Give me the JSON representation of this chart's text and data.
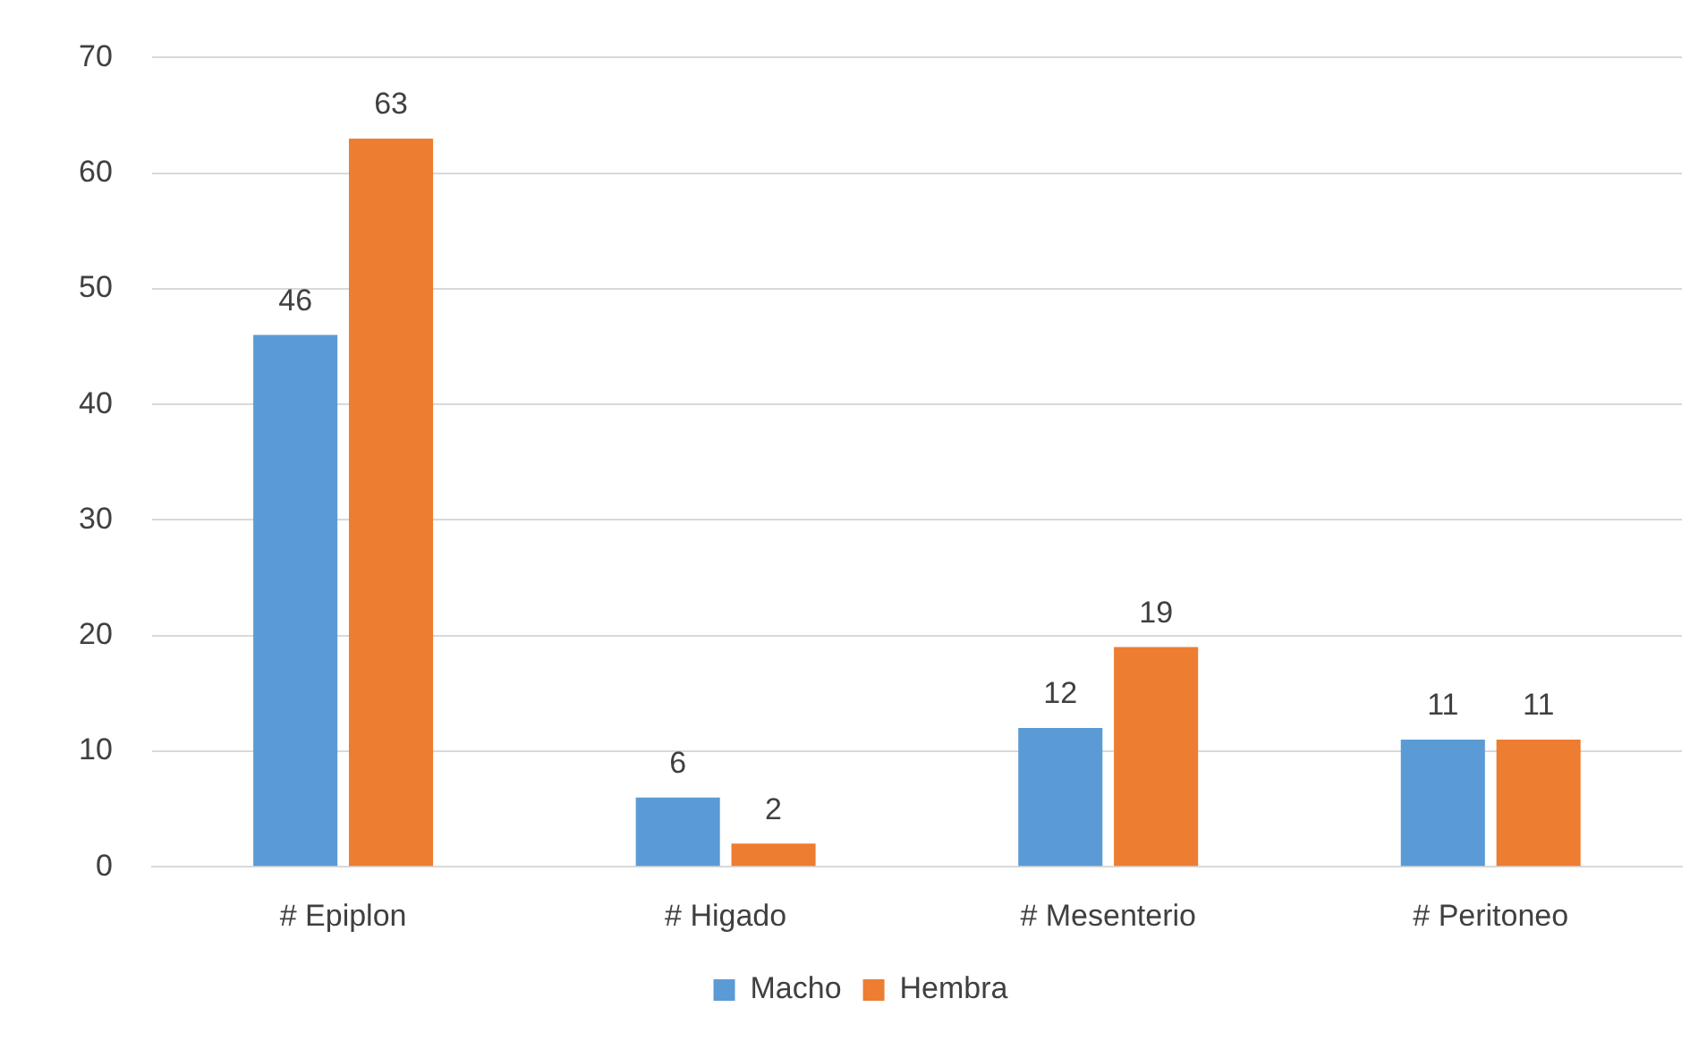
{
  "chart_data": {
    "type": "bar",
    "categories": [
      "# Epiplon",
      "# Higado",
      "# Mesenterio",
      "# Peritoneo"
    ],
    "series": [
      {
        "name": "Macho",
        "color": "#5b9bd5",
        "values": [
          46,
          6,
          12,
          11
        ]
      },
      {
        "name": "Hembra",
        "color": "#ed7d31",
        "values": [
          63,
          2,
          19,
          11
        ]
      }
    ],
    "ylim": [
      0,
      70
    ],
    "yticks": [
      0,
      10,
      20,
      30,
      40,
      50,
      60,
      70
    ],
    "grid": "y",
    "legend": "bottom",
    "data_labels": true
  }
}
